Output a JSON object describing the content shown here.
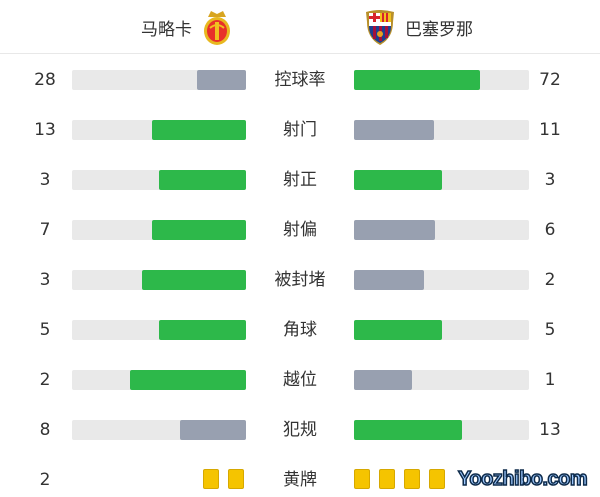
{
  "home": {
    "name": "马略卡",
    "crest": "mallorca-crest"
  },
  "away": {
    "name": "巴塞罗那",
    "crest": "barcelona-crest"
  },
  "colors": {
    "leader": "#2db84a",
    "trailer": "#98a0b0",
    "track": "#e9e9e9",
    "card": "#f5c400"
  },
  "stats": [
    {
      "label": "控球率",
      "home": 28,
      "away": 72
    },
    {
      "label": "射门",
      "home": 13,
      "away": 11
    },
    {
      "label": "射正",
      "home": 3,
      "away": 3
    },
    {
      "label": "射偏",
      "home": 7,
      "away": 6
    },
    {
      "label": "被封堵",
      "home": 3,
      "away": 2
    },
    {
      "label": "角球",
      "home": 5,
      "away": 5
    },
    {
      "label": "越位",
      "home": 2,
      "away": 1
    },
    {
      "label": "犯规",
      "home": 8,
      "away": 13
    }
  ],
  "cards": {
    "label": "黄牌",
    "home": 2,
    "away": 4
  },
  "watermark": "Yoozhibo.com"
}
